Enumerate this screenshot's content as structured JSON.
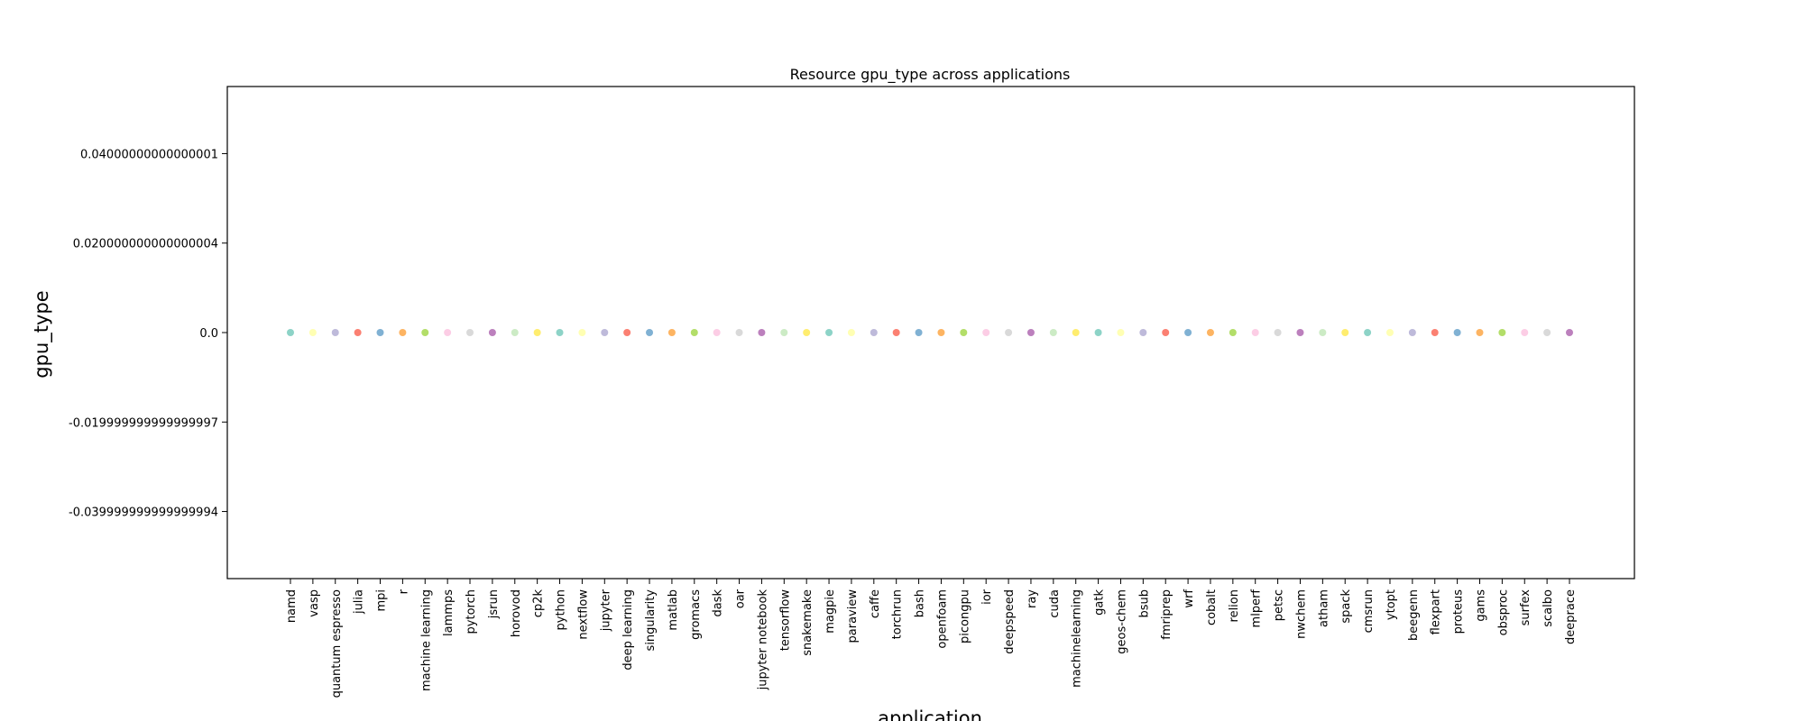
{
  "chart_data": {
    "type": "scatter",
    "title": "Resource gpu_type across applications",
    "xlabel": "application",
    "ylabel": "gpu_type",
    "categories": [
      "namd",
      "vasp",
      "quantum espresso",
      "julia",
      "mpi",
      "r",
      "machine learning",
      "lammps",
      "pytorch",
      "jsrun",
      "horovod",
      "cp2k",
      "python",
      "nextflow",
      "jupyter",
      "deep learning",
      "singularity",
      "matlab",
      "gromacs",
      "dask",
      "oar",
      "jupyter notebook",
      "tensorflow",
      "snakemake",
      "magpie",
      "paraview",
      "caffe",
      "torchrun",
      "bash",
      "openfoam",
      "picongpu",
      "ior",
      "deepspeed",
      "ray",
      "cuda",
      "machinelearning",
      "gatk",
      "geos-chem",
      "bsub",
      "fmriprep",
      "wrf",
      "cobalt",
      "relion",
      "mlperf",
      "petsc",
      "nwchem",
      "atham",
      "spack",
      "cmsrun",
      "ytopt",
      "beegenn",
      "flexpart",
      "proteus",
      "gams",
      "obsproc",
      "surfex",
      "scalbo",
      "deeprace"
    ],
    "values": [
      0,
      0,
      0,
      0,
      0,
      0,
      0,
      0,
      0,
      0,
      0,
      0,
      0,
      0,
      0,
      0,
      0,
      0,
      0,
      0,
      0,
      0,
      0,
      0,
      0,
      0,
      0,
      0,
      0,
      0,
      0,
      0,
      0,
      0,
      0,
      0,
      0,
      0,
      0,
      0,
      0,
      0,
      0,
      0,
      0,
      0,
      0,
      0,
      0,
      0,
      0,
      0,
      0,
      0,
      0,
      0,
      0,
      0
    ],
    "ylim": [
      -0.055,
      0.055
    ],
    "yticks": [
      0.04000000000000001,
      0.020000000000000004,
      0.0,
      -0.019999999999999997,
      -0.039999999999999994
    ],
    "ytick_labels": [
      "0.04000000000000001",
      "0.020000000000000004",
      "0.0",
      "-0.019999999999999997",
      "-0.039999999999999994"
    ],
    "palette": [
      "#8dd3c7",
      "#ffffb3",
      "#bebada",
      "#fb8072",
      "#80b1d3",
      "#fdb462",
      "#b3de69",
      "#fccde5",
      "#d9d9d9",
      "#bc80bd",
      "#ccebc5",
      "#ffed6f"
    ],
    "grid": false,
    "legend": "none"
  }
}
